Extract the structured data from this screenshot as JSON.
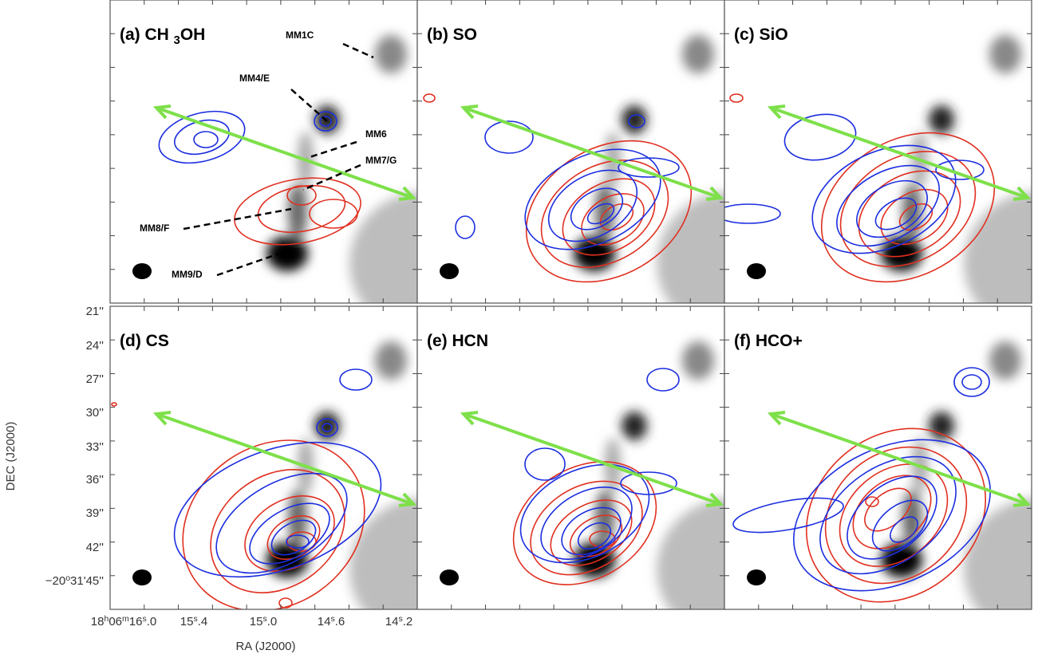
{
  "panels": [
    {
      "title": [
        "(a) CH ",
        "3",
        "OH"
      ]
    },
    {
      "title": "(b) SO"
    },
    {
      "title": "(c) SiO"
    },
    {
      "title": "(d) CS"
    },
    {
      "title": "(e) HCN"
    },
    {
      "title": "(f) HCO+"
    }
  ],
  "annotations": [
    "MM1C",
    "MM4/E",
    "MM6",
    "MM7/G",
    "MM8/F",
    "MM9/D"
  ],
  "dec_axis": {
    "label": "DEC (J2000)",
    "ticks": [
      "21''",
      "24''",
      "27''",
      "30''",
      "33''",
      "36''",
      "39''",
      "42''",
      [
        "−20",
        "o",
        "31'45''"
      ]
    ]
  },
  "ra_axis": {
    "label": "RA (J2000)",
    "ticks": [
      [
        "18",
        "h",
        "06",
        "m",
        "16",
        "s",
        ".0"
      ],
      [
        "15",
        "s",
        ".4"
      ],
      [
        "15",
        "s",
        ".0"
      ],
      [
        "14",
        "s",
        ".6"
      ],
      [
        "14",
        "s",
        ".2"
      ]
    ]
  }
}
